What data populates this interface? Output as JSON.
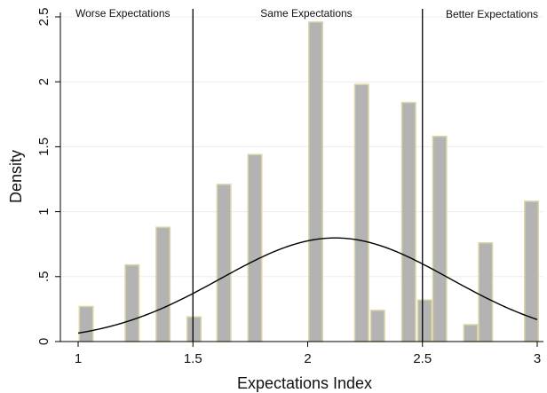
{
  "chart_data": {
    "type": "bar",
    "xlabel": "Expectations Index",
    "ylabel": "Density",
    "xlim": [
      0.92,
      3.03
    ],
    "ylim": [
      0,
      2.55
    ],
    "x_ticks": [
      1,
      1.5,
      2,
      2.5,
      3
    ],
    "x_tick_labels": [
      "1",
      "1.5",
      "2",
      "2.5",
      "3"
    ],
    "y_ticks": [
      0,
      0.5,
      1,
      1.5,
      2,
      2.5
    ],
    "y_tick_labels": [
      "0",
      ".5",
      "1",
      "1.5",
      "2",
      "2.5"
    ],
    "grid": true,
    "bar_width": 0.06,
    "bars": [
      {
        "x": 1.035,
        "value": 0.27
      },
      {
        "x": 1.235,
        "value": 0.59
      },
      {
        "x": 1.37,
        "value": 0.88
      },
      {
        "x": 1.505,
        "value": 0.19
      },
      {
        "x": 1.635,
        "value": 1.21
      },
      {
        "x": 1.77,
        "value": 1.44
      },
      {
        "x": 2.035,
        "value": 2.46
      },
      {
        "x": 2.235,
        "value": 1.98
      },
      {
        "x": 2.305,
        "value": 0.24
      },
      {
        "x": 2.44,
        "value": 1.84
      },
      {
        "x": 2.51,
        "value": 0.32
      },
      {
        "x": 2.575,
        "value": 1.58
      },
      {
        "x": 2.71,
        "value": 0.13
      },
      {
        "x": 2.775,
        "value": 0.76
      },
      {
        "x": 2.975,
        "value": 1.08
      }
    ],
    "normal_curve": {
      "mean": 2.12,
      "sd": 0.5
    },
    "reference_lines": [
      1.5,
      2.5
    ],
    "annotations": [
      "Worse Expectations",
      "Same Expectations",
      "Better Expectations"
    ],
    "colors": {
      "bar_fill": "#b3b3b3",
      "bar_edge": "#dcd6a6",
      "curve": "#000000",
      "grid": "#ececec"
    }
  }
}
